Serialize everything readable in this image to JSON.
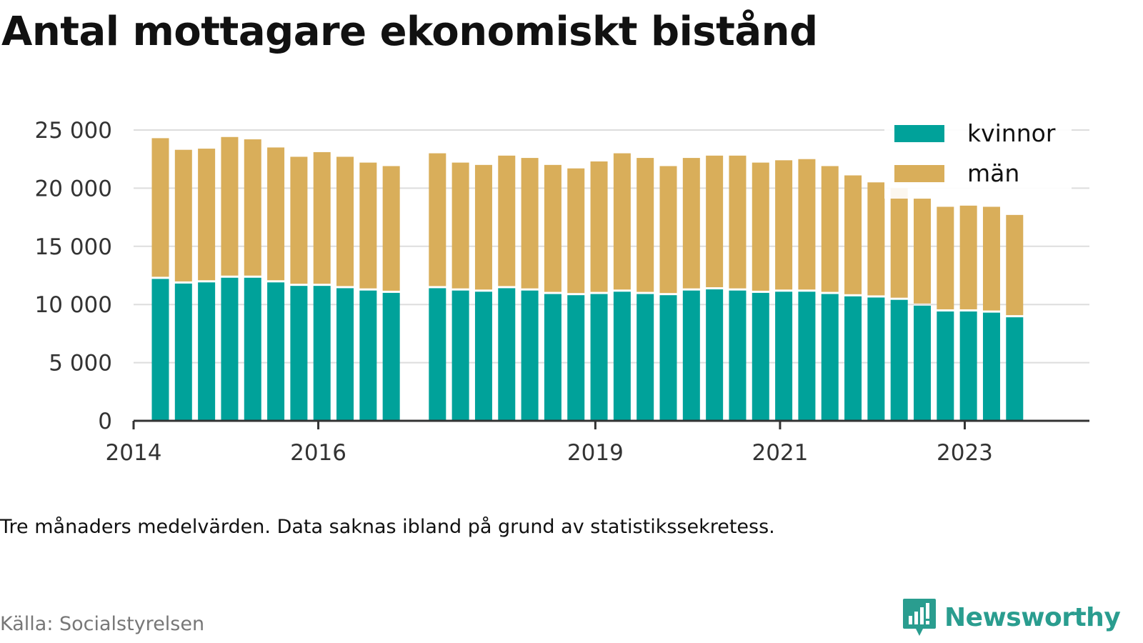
{
  "title": "Antal mottagare ekonomiskt bistånd",
  "note": "Tre månaders medelvärden. Data saknas ibland på grund av statistikssekretess.",
  "source": "Källa: Socialstyrelsen",
  "brand": "Newsworthy",
  "colors": {
    "kvinnor": "#00a29a",
    "man": "#d9ae5a",
    "grid": "#dddddd",
    "axis": "#333333",
    "brand": "#2a9d8f"
  },
  "chart_data": {
    "type": "bar",
    "stacked": true,
    "title": "Antal mottagare ekonomiskt bistånd",
    "ylim": [
      0,
      25000
    ],
    "yticks": [
      0,
      5000,
      10000,
      15000,
      20000,
      25000
    ],
    "ytick_labels": [
      "0",
      "5 000",
      "10 000",
      "15 000",
      "20 000",
      "25 000"
    ],
    "xlim": [
      2014.0,
      2024.35
    ],
    "xticks": [
      2014,
      2016,
      2019,
      2021,
      2023
    ],
    "xtick_labels": [
      "2014",
      "2016",
      "2019",
      "2021",
      "2023"
    ],
    "grid": true,
    "legend": "top-right",
    "x": [
      2014.29,
      2014.54,
      2014.79,
      2015.04,
      2015.29,
      2015.54,
      2015.79,
      2016.04,
      2016.29,
      2016.54,
      2016.79,
      2017.29,
      2017.54,
      2017.79,
      2018.04,
      2018.29,
      2018.54,
      2018.79,
      2019.04,
      2019.29,
      2019.54,
      2019.79,
      2020.04,
      2020.29,
      2020.54,
      2020.79,
      2021.04,
      2021.29,
      2021.54,
      2021.79,
      2022.04,
      2022.29,
      2022.54,
      2022.79,
      2023.04,
      2023.29,
      2023.54
    ],
    "series": [
      {
        "name": "kvinnor",
        "values": [
          12200,
          11800,
          11900,
          12300,
          12300,
          11900,
          11600,
          11600,
          11400,
          11200,
          11000,
          11400,
          11200,
          11100,
          11400,
          11200,
          10900,
          10800,
          10900,
          11100,
          10900,
          10800,
          11200,
          11300,
          11200,
          11000,
          11100,
          11100,
          10900,
          10700,
          10600,
          10400,
          9900,
          9400,
          9400,
          9300,
          8900
        ]
      },
      {
        "name": "män",
        "values": [
          12100,
          11500,
          11500,
          12100,
          11900,
          11600,
          11100,
          11500,
          11300,
          11000,
          10900,
          11600,
          11000,
          10900,
          11400,
          11400,
          11100,
          10900,
          11400,
          11900,
          11700,
          11100,
          11400,
          11500,
          11600,
          11200,
          11300,
          11400,
          11000,
          10400,
          9900,
          9600,
          9200,
          9000,
          9100,
          9100,
          8800
        ]
      }
    ]
  }
}
